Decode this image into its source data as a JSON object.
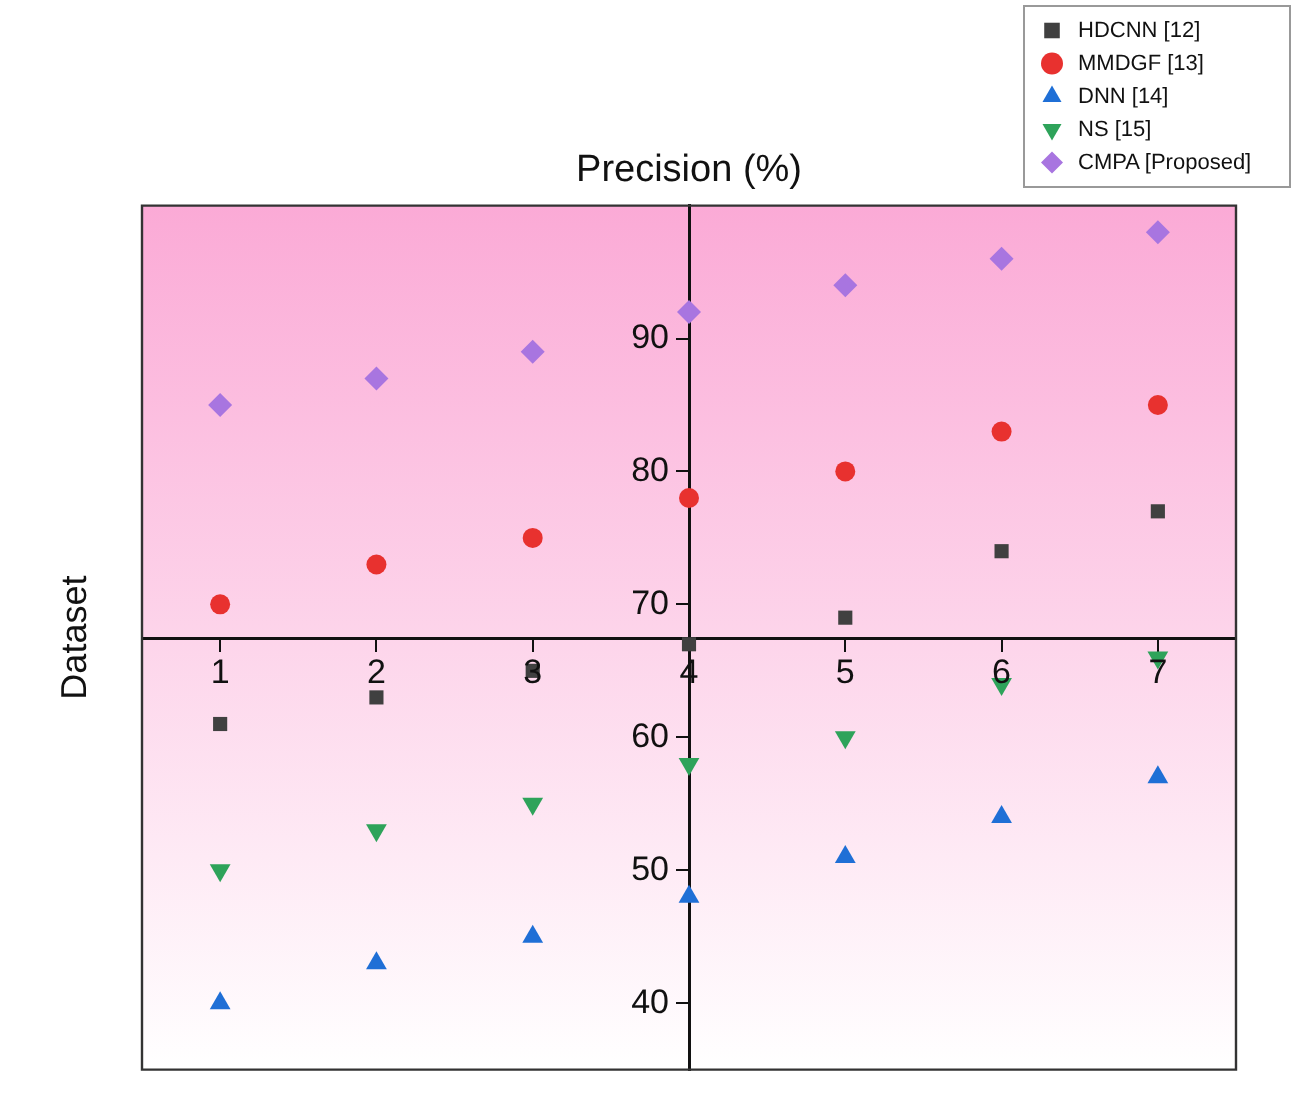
{
  "chart_data": {
    "type": "scatter",
    "title": "Precision (%)",
    "ylabel": "Dataset",
    "x": [
      1,
      2,
      3,
      4,
      5,
      6,
      7
    ],
    "xlim": [
      0.5,
      7.5
    ],
    "xticks": [
      1,
      2,
      3,
      4,
      5,
      6,
      7
    ],
    "ylim": [
      35,
      100
    ],
    "yticks": [
      40,
      50,
      60,
      70,
      80,
      90
    ],
    "legend": "top right",
    "series": [
      {
        "name": "HDCNN [12]",
        "color": "#404040",
        "marker": "square",
        "values": [
          61,
          63,
          65,
          67,
          69,
          74,
          77
        ]
      },
      {
        "name": "MMDGF [13]",
        "color": "#e8312f",
        "marker": "circle",
        "values": [
          70,
          73,
          75,
          78,
          80,
          83,
          85
        ]
      },
      {
        "name": "DNN [14]",
        "color": "#1f6fd6",
        "marker": "triangle",
        "values": [
          40,
          43,
          45,
          48,
          51,
          54,
          57
        ]
      },
      {
        "name": "NS [15]",
        "color": "#2ea35a",
        "marker": "triangle-down",
        "values": [
          50,
          53,
          55,
          58,
          60,
          64,
          66
        ]
      },
      {
        "name": "CMPA [Proposed]",
        "color": "#a875e0",
        "marker": "diamond",
        "values": [
          85,
          87,
          89,
          92,
          94,
          96,
          98
        ]
      }
    ]
  }
}
